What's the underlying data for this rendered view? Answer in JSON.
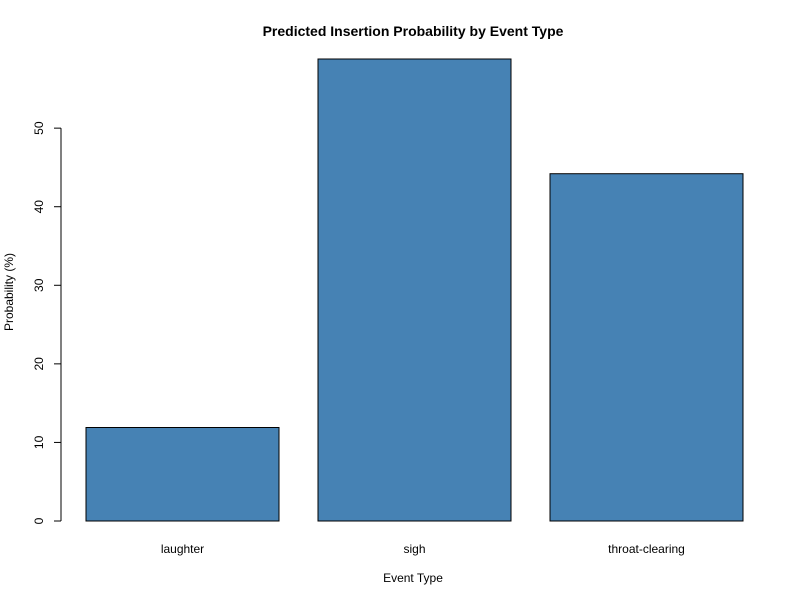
{
  "chart_data": {
    "type": "bar",
    "title": "Predicted Insertion Probability by Event Type",
    "xlabel": "Event Type",
    "ylabel": "Probability (%)",
    "categories": [
      "laughter",
      "sigh",
      "throat-clearing"
    ],
    "values": [
      11.9,
      58.8,
      44.2
    ],
    "ylim": [
      0,
      58.8
    ],
    "yticks": [
      0,
      10,
      20,
      30,
      40,
      50
    ],
    "bar_color": "#4682B4",
    "grid": false,
    "legend": "none"
  }
}
